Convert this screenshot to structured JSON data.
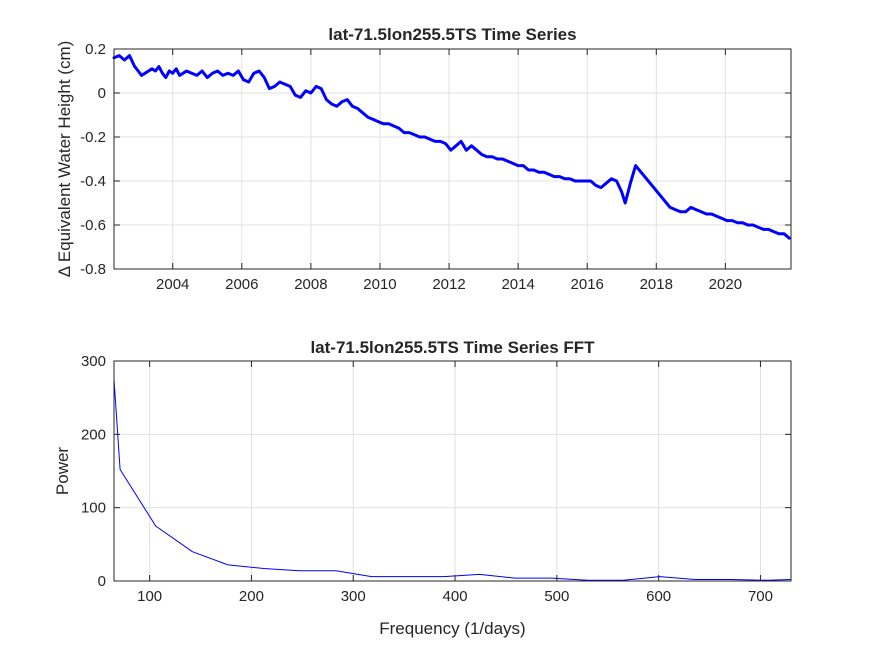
{
  "figure": {
    "background": "#ffffff",
    "axis_color": "#262626",
    "grid_color": "#e0e0e0",
    "line_color": "#0000ff"
  },
  "chart_data": [
    {
      "type": "line",
      "title": "lat-71.5lon255.5TS Time Series",
      "xlabel": "",
      "ylabel": "Δ  Equivalent Water Height (cm)",
      "xlim": [
        2002.3,
        2021.9
      ],
      "ylim": [
        -0.8,
        0.2
      ],
      "xticks": [
        2004,
        2006,
        2008,
        2010,
        2012,
        2014,
        2016,
        2018,
        2020
      ],
      "yticks": [
        -0.8,
        -0.6,
        -0.4,
        -0.2,
        0,
        0.2
      ],
      "xtick_labels": [
        "2004",
        "2006",
        "2008",
        "2010",
        "2012",
        "2014",
        "2016",
        "2018",
        "2020"
      ],
      "ytick_labels": [
        "-0.8",
        "-0.6",
        "-0.4",
        "-0.2",
        "0",
        "0.2"
      ],
      "grid": true,
      "series": [
        {
          "color": "#0000ff",
          "x": [
            2002.3,
            2002.45,
            2002.6,
            2002.75,
            2002.9,
            2003.0,
            2003.1,
            2003.2,
            2003.3,
            2003.4,
            2003.5,
            2003.6,
            2003.7,
            2003.8,
            2003.9,
            2004.0,
            2004.1,
            2004.2,
            2004.3,
            2004.4,
            2004.55,
            2004.7,
            2004.85,
            2005.0,
            2005.15,
            2005.3,
            2005.45,
            2005.6,
            2005.75,
            2005.9,
            2006.05,
            2006.2,
            2006.35,
            2006.5,
            2006.65,
            2006.8,
            2006.95,
            2007.1,
            2007.25,
            2007.4,
            2007.55,
            2007.7,
            2007.85,
            2008.0,
            2008.15,
            2008.3,
            2008.45,
            2008.6,
            2008.75,
            2008.9,
            2009.05,
            2009.2,
            2009.35,
            2009.5,
            2009.65,
            2009.8,
            2009.95,
            2010.1,
            2010.25,
            2010.4,
            2010.55,
            2010.7,
            2010.85,
            2011.0,
            2011.15,
            2011.3,
            2011.45,
            2011.6,
            2011.75,
            2011.9,
            2012.05,
            2012.2,
            2012.35,
            2012.5,
            2012.65,
            2012.8,
            2012.95,
            2013.1,
            2013.25,
            2013.4,
            2013.55,
            2013.7,
            2013.85,
            2014.0,
            2014.15,
            2014.3,
            2014.45,
            2014.6,
            2014.75,
            2014.9,
            2015.05,
            2015.2,
            2015.35,
            2015.5,
            2015.65,
            2015.8,
            2015.95,
            2016.1,
            2016.25,
            2016.4,
            2016.55,
            2016.7,
            2016.85,
            2017.0,
            2017.1,
            2017.25,
            2017.4,
            2018.4,
            2018.55,
            2018.7,
            2018.85,
            2019.0,
            2019.15,
            2019.3,
            2019.45,
            2019.6,
            2019.75,
            2019.9,
            2020.05,
            2020.2,
            2020.35,
            2020.5,
            2020.65,
            2020.8,
            2020.95,
            2021.1,
            2021.25,
            2021.4,
            2021.55,
            2021.7,
            2021.85
          ],
          "y": [
            0.16,
            0.17,
            0.15,
            0.17,
            0.12,
            0.1,
            0.08,
            0.09,
            0.1,
            0.11,
            0.1,
            0.12,
            0.09,
            0.07,
            0.1,
            0.09,
            0.11,
            0.08,
            0.09,
            0.1,
            0.09,
            0.08,
            0.1,
            0.07,
            0.09,
            0.1,
            0.08,
            0.09,
            0.08,
            0.1,
            0.06,
            0.05,
            0.09,
            0.1,
            0.07,
            0.02,
            0.03,
            0.05,
            0.04,
            0.03,
            -0.01,
            -0.02,
            0.01,
            0.0,
            0.03,
            0.02,
            -0.03,
            -0.05,
            -0.06,
            -0.04,
            -0.03,
            -0.06,
            -0.07,
            -0.09,
            -0.11,
            -0.12,
            -0.13,
            -0.14,
            -0.14,
            -0.15,
            -0.16,
            -0.18,
            -0.18,
            -0.19,
            -0.2,
            -0.2,
            -0.21,
            -0.22,
            -0.22,
            -0.23,
            -0.26,
            -0.24,
            -0.22,
            -0.26,
            -0.24,
            -0.26,
            -0.28,
            -0.29,
            -0.29,
            -0.3,
            -0.3,
            -0.31,
            -0.32,
            -0.33,
            -0.33,
            -0.35,
            -0.35,
            -0.36,
            -0.36,
            -0.37,
            -0.38,
            -0.38,
            -0.39,
            -0.39,
            -0.4,
            -0.4,
            -0.4,
            -0.4,
            -0.42,
            -0.43,
            -0.41,
            -0.39,
            -0.4,
            -0.45,
            -0.5,
            -0.41,
            -0.33,
            -0.52,
            -0.53,
            -0.54,
            -0.54,
            -0.52,
            -0.53,
            -0.54,
            -0.55,
            -0.55,
            -0.56,
            -0.57,
            -0.58,
            -0.58,
            -0.59,
            -0.59,
            -0.6,
            -0.6,
            -0.61,
            -0.62,
            -0.62,
            -0.63,
            -0.64,
            -0.64,
            -0.66
          ]
        }
      ]
    },
    {
      "type": "line",
      "title": "lat-71.5lon255.5TS Time Series FFT",
      "xlabel": "Frequency (1/days)",
      "ylabel": "Power",
      "xlim": [
        65,
        730
      ],
      "ylim": [
        0,
        300
      ],
      "xticks": [
        100,
        200,
        300,
        400,
        500,
        600,
        700
      ],
      "yticks": [
        0,
        100,
        200,
        300
      ],
      "xtick_labels": [
        "100",
        "200",
        "300",
        "400",
        "500",
        "600",
        "700"
      ],
      "ytick_labels": [
        "0",
        "100",
        "200",
        "300"
      ],
      "grid": true,
      "series": [
        {
          "color": "#0000ff",
          "x": [
            65,
            71,
            106,
            142,
            177,
            212,
            247,
            283,
            318,
            353,
            389,
            424,
            459,
            495,
            530,
            565,
            601,
            636,
            671,
            707,
            730
          ],
          "y": [
            275,
            152,
            75,
            40,
            22,
            17,
            14,
            14,
            6,
            6,
            6,
            9,
            4,
            4,
            1,
            1,
            6,
            2,
            2,
            1,
            2
          ]
        }
      ]
    }
  ]
}
